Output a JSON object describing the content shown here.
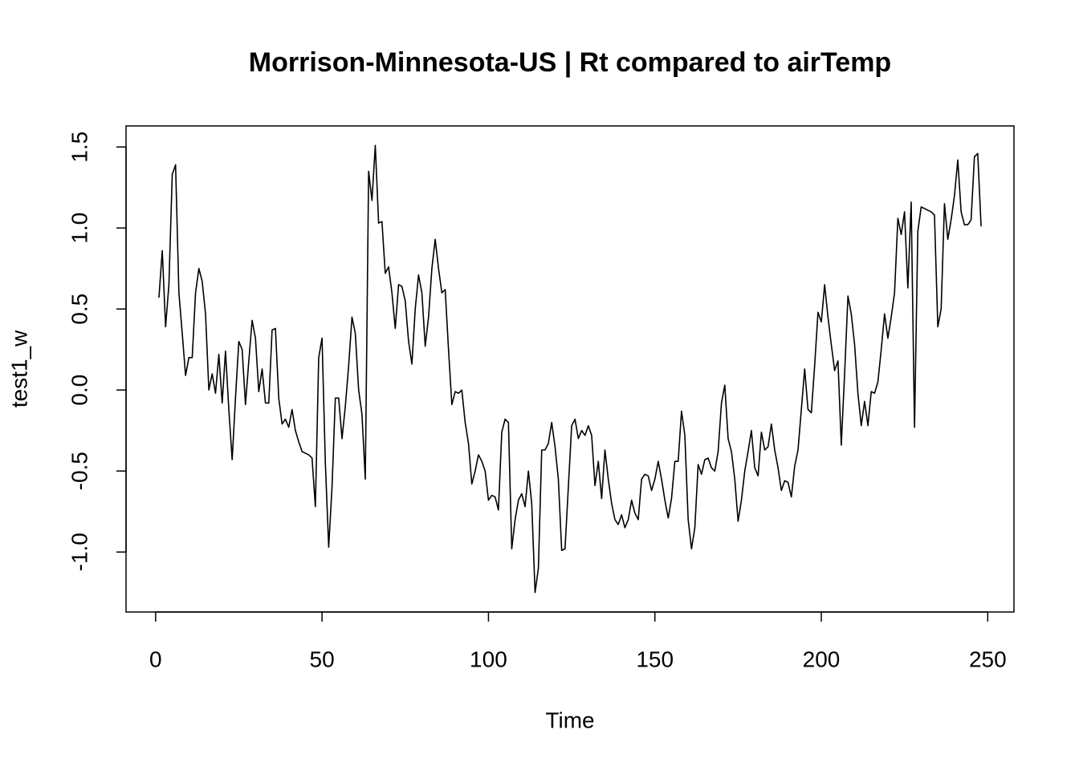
{
  "chart_data": {
    "type": "line",
    "title": "Morrison-Minnesota-US | Rt compared to airTemp",
    "x_label": "Time",
    "y_label": "test1_w",
    "xlim": [
      -8.88,
      257.88
    ],
    "ylim": [
      -1.37,
      1.63
    ],
    "xticks": [
      0,
      50,
      100,
      150,
      200,
      250
    ],
    "yticks": [
      {
        "value": -1,
        "label": "-1.0"
      },
      -0.5,
      {
        "value": 0,
        "label": "0.0"
      },
      0.5,
      {
        "value": 1,
        "label": "1.0"
      },
      1.5
    ],
    "series": [
      {
        "color": "#000000",
        "x": [
          1,
          2,
          3,
          4,
          5,
          6,
          7,
          8,
          9,
          10,
          11,
          12,
          13,
          14,
          15,
          16,
          17,
          18,
          19,
          20,
          21,
          22,
          23,
          24,
          25,
          26,
          27,
          28,
          29,
          30,
          31,
          32,
          33,
          34,
          35,
          36,
          37,
          38,
          39,
          40,
          41,
          42,
          43,
          44,
          45,
          46,
          47,
          48,
          49,
          50,
          51,
          52,
          53,
          54,
          55,
          56,
          57,
          58,
          59,
          60,
          61,
          62,
          63,
          64,
          65,
          66,
          67,
          68,
          69,
          70,
          71,
          72,
          73,
          74,
          75,
          76,
          77,
          78,
          79,
          80,
          81,
          82,
          83,
          84,
          85,
          86,
          87,
          88,
          89,
          90,
          91,
          92,
          93,
          94,
          95,
          96,
          97,
          98,
          99,
          100,
          101,
          102,
          103,
          104,
          105,
          106,
          107,
          108,
          109,
          110,
          111,
          112,
          113,
          114,
          115,
          116,
          117,
          118,
          119,
          120,
          121,
          122,
          123,
          124,
          125,
          126,
          127,
          128,
          129,
          130,
          131,
          132,
          133,
          134,
          135,
          136,
          137,
          138,
          139,
          140,
          141,
          142,
          143,
          144,
          145,
          146,
          147,
          148,
          149,
          150,
          151,
          152,
          153,
          154,
          155,
          156,
          157,
          158,
          159,
          160,
          161,
          162,
          163,
          164,
          165,
          166,
          167,
          168,
          169,
          170,
          171,
          172,
          173,
          174,
          175,
          176,
          177,
          178,
          179,
          180,
          181,
          182,
          183,
          184,
          185,
          186,
          187,
          188,
          189,
          190,
          191,
          192,
          193,
          194,
          195,
          196,
          197,
          198,
          199,
          200,
          201,
          202,
          203,
          204,
          205,
          206,
          207,
          208,
          209,
          210,
          211,
          212,
          213,
          214,
          215,
          216,
          217,
          218,
          219,
          220,
          221,
          222,
          223,
          224,
          225,
          226,
          227,
          228,
          229,
          230,
          231,
          232,
          233,
          234,
          235,
          236,
          237,
          238,
          239,
          240,
          241,
          242,
          243,
          244,
          245,
          246,
          247,
          248
        ],
        "values": [
          0.57,
          0.86,
          0.39,
          0.65,
          1.33,
          1.39,
          0.6,
          0.35,
          0.09,
          0.2,
          0.2,
          0.6,
          0.75,
          0.67,
          0.47,
          0.0,
          0.1,
          -0.02,
          0.22,
          -0.08,
          0.24,
          -0.12,
          -0.43,
          -0.05,
          0.3,
          0.25,
          -0.09,
          0.18,
          0.43,
          0.32,
          -0.01,
          0.13,
          -0.08,
          -0.08,
          0.37,
          0.38,
          -0.05,
          -0.21,
          -0.18,
          -0.23,
          -0.12,
          -0.25,
          -0.32,
          -0.38,
          -0.39,
          -0.4,
          -0.42,
          -0.72,
          0.2,
          0.32,
          -0.45,
          -0.97,
          -0.6,
          -0.05,
          -0.05,
          -0.3,
          -0.1,
          0.15,
          0.45,
          0.35,
          0.0,
          -0.15,
          -0.55,
          1.35,
          1.17,
          1.51,
          1.03,
          1.04,
          0.72,
          0.76,
          0.6,
          0.38,
          0.65,
          0.64,
          0.55,
          0.3,
          0.16,
          0.5,
          0.71,
          0.6,
          0.27,
          0.45,
          0.75,
          0.93,
          0.75,
          0.6,
          0.62,
          0.25,
          -0.09,
          -0.01,
          -0.02,
          0.0,
          -0.2,
          -0.33,
          -0.58,
          -0.5,
          -0.4,
          -0.44,
          -0.5,
          -0.68,
          -0.65,
          -0.66,
          -0.74,
          -0.26,
          -0.18,
          -0.2,
          -0.98,
          -0.8,
          -0.68,
          -0.64,
          -0.72,
          -0.5,
          -0.7,
          -1.25,
          -1.1,
          -0.37,
          -0.37,
          -0.33,
          -0.2,
          -0.35,
          -0.55,
          -0.99,
          -0.98,
          -0.6,
          -0.22,
          -0.18,
          -0.3,
          -0.25,
          -0.28,
          -0.22,
          -0.28,
          -0.59,
          -0.44,
          -0.67,
          -0.37,
          -0.55,
          -0.7,
          -0.8,
          -0.83,
          -0.77,
          -0.85,
          -0.8,
          -0.68,
          -0.76,
          -0.8,
          -0.55,
          -0.52,
          -0.53,
          -0.62,
          -0.55,
          -0.44,
          -0.55,
          -0.68,
          -0.79,
          -0.67,
          -0.44,
          -0.44,
          -0.13,
          -0.28,
          -0.8,
          -0.98,
          -0.85,
          -0.46,
          -0.52,
          -0.43,
          -0.42,
          -0.48,
          -0.5,
          -0.38,
          -0.08,
          0.03,
          -0.3,
          -0.38,
          -0.55,
          -0.81,
          -0.68,
          -0.5,
          -0.38,
          -0.25,
          -0.48,
          -0.53,
          -0.26,
          -0.37,
          -0.35,
          -0.21,
          -0.37,
          -0.48,
          -0.62,
          -0.56,
          -0.57,
          -0.66,
          -0.47,
          -0.37,
          -0.12,
          0.13,
          -0.12,
          -0.14,
          0.15,
          0.48,
          0.42,
          0.65,
          0.45,
          0.28,
          0.12,
          0.18,
          -0.34,
          0.1,
          0.58,
          0.47,
          0.28,
          -0.02,
          -0.22,
          -0.07,
          -0.22,
          -0.01,
          -0.02,
          0.05,
          0.25,
          0.47,
          0.32,
          0.45,
          0.6,
          1.06,
          0.96,
          1.1,
          0.63,
          1.16,
          -0.23,
          0.98,
          1.13,
          1.12,
          1.11,
          1.1,
          1.08,
          0.39,
          0.5,
          1.15,
          0.93,
          1.05,
          1.2,
          1.42,
          1.1,
          1.02,
          1.02,
          1.05,
          1.44,
          1.46,
          1.01
        ]
      }
    ]
  }
}
